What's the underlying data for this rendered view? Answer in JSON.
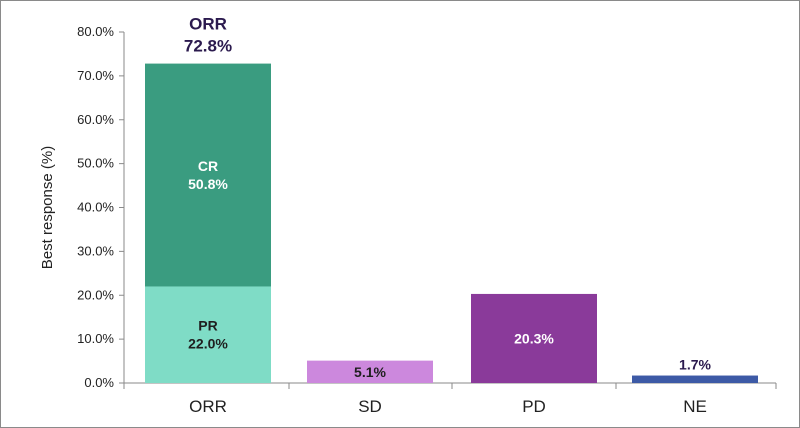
{
  "chart_data": {
    "type": "bar",
    "stacked": true,
    "ylabel": "Best response (%)",
    "ylim": [
      0,
      80
    ],
    "yticks": [
      "0.0%",
      "10.0%",
      "20.0%",
      "30.0%",
      "40.0%",
      "50.0%",
      "60.0%",
      "70.0%",
      "80.0%"
    ],
    "categories": [
      "ORR",
      "SD",
      "PD",
      "NE"
    ],
    "segments": [
      {
        "category": "ORR",
        "name": "PR",
        "value": 22.0,
        "label_name": "PR",
        "label_value": "22.0%",
        "color": "#7fdcc6",
        "text_color": "#1f1f1f"
      },
      {
        "category": "ORR",
        "name": "CR",
        "value": 50.8,
        "label_name": "CR",
        "label_value": "50.8%",
        "color": "#3a9c80",
        "text_color": "#ffffff"
      },
      {
        "category": "SD",
        "name": "",
        "value": 5.1,
        "label_name": "",
        "label_value": "5.1%",
        "color": "#cc88dd",
        "text_color": "#1f1f1f"
      },
      {
        "category": "PD",
        "name": "",
        "value": 20.3,
        "label_name": "",
        "label_value": "20.3%",
        "color": "#8a3a9a",
        "text_color": "#ffffff"
      },
      {
        "category": "NE",
        "name": "",
        "value": 1.7,
        "label_name": "",
        "label_value": "1.7%",
        "color": "#3d5aa6",
        "text_color": "#1f1f1f"
      }
    ],
    "total_label": {
      "category": "ORR",
      "title": "ORR",
      "value": "72.8%"
    },
    "grid": false,
    "legend": "none"
  }
}
